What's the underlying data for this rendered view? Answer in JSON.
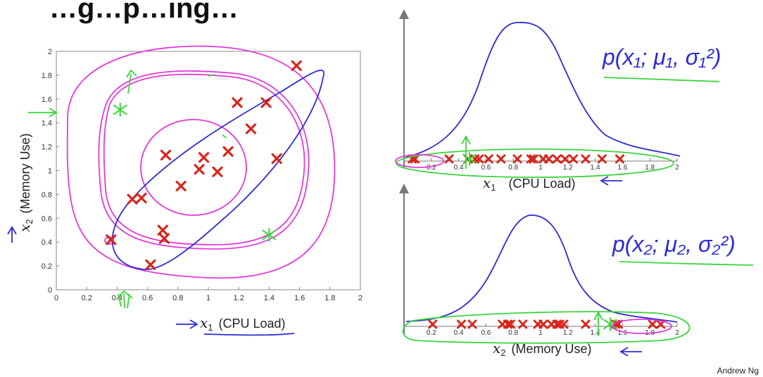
{
  "slide": {
    "title": "…g…p…ing…",
    "credit": "Andrew Ng"
  },
  "colors": {
    "data_points": "#d8261b",
    "gaussian_curve": "#2b2bd6",
    "handwriting_magenta": "#e23ad9",
    "handwriting_green": "#3ad63a",
    "handwriting_blue": "#2b2bd6",
    "axis": "#777777"
  },
  "scatter": {
    "xlabel_var": "x",
    "xlabel_sub": "1",
    "xlabel_text": "(CPU Load)",
    "ylabel_var": "x",
    "ylabel_sub": "2",
    "ylabel_text": "(Memory Use)"
  },
  "hist1": {
    "label_var": "x",
    "label_sub": "1",
    "label_text": "(CPU Load)",
    "formula": "p(x₁; μ₁, σ₁²)"
  },
  "hist2": {
    "label_var": "x",
    "label_sub": "2",
    "label_text": "(Memory Use)",
    "formula": "p(x₂; μ₂, σ₂²)"
  },
  "chart_data": [
    {
      "type": "scatter",
      "xlabel": "x1 (CPU Load)",
      "ylabel": "x2 (Memory Use)",
      "xlim": [
        0,
        2
      ],
      "ylim": [
        0,
        2
      ],
      "xticks": [
        "0",
        "0.2",
        "0.4",
        "0.6",
        "0.8",
        "1",
        "1.2",
        "1.4",
        "1.6",
        "1.8",
        "2"
      ],
      "yticks": [
        "0",
        "0.2",
        "0.4",
        "0.6",
        "0.8",
        "1",
        "1.2",
        "1.4",
        "1.6",
        "1.8",
        "2"
      ],
      "points": [
        {
          "x": 0.36,
          "y": 0.42
        },
        {
          "x": 0.5,
          "y": 0.76
        },
        {
          "x": 0.56,
          "y": 0.77
        },
        {
          "x": 0.62,
          "y": 0.21
        },
        {
          "x": 0.7,
          "y": 0.5
        },
        {
          "x": 0.71,
          "y": 0.43
        },
        {
          "x": 0.72,
          "y": 1.13
        },
        {
          "x": 0.82,
          "y": 0.87
        },
        {
          "x": 0.94,
          "y": 1.01
        },
        {
          "x": 0.97,
          "y": 1.11
        },
        {
          "x": 1.06,
          "y": 0.99
        },
        {
          "x": 1.13,
          "y": 1.16
        },
        {
          "x": 1.19,
          "y": 1.57
        },
        {
          "x": 1.28,
          "y": 1.35
        },
        {
          "x": 1.38,
          "y": 1.57
        },
        {
          "x": 1.45,
          "y": 1.1
        },
        {
          "x": 1.58,
          "y": 1.88
        }
      ],
      "anomalies": [
        {
          "x": 0.42,
          "y": 1.51
        },
        {
          "x": 1.4,
          "y": 0.46
        }
      ]
    },
    {
      "type": "scatter",
      "xlabel": "x1 (CPU Load)",
      "xlim": [
        0,
        2
      ],
      "xticks": [
        "0.2",
        "0.4",
        "0.6",
        "0.8",
        "1",
        "1.2",
        "1.4",
        "1.6",
        "1.8",
        "2"
      ],
      "points_x": [
        0.06,
        0.08,
        0.33,
        0.47,
        0.52,
        0.55,
        0.62,
        0.71,
        0.83,
        0.93,
        0.95,
        1.02,
        1.06,
        1.12,
        1.18,
        1.24,
        1.33,
        1.45,
        1.58
      ],
      "anomaly_x": 0.48
    },
    {
      "type": "scatter",
      "xlabel": "x2 (Memory Use)",
      "xlim": [
        0,
        2
      ],
      "xticks": [
        "0.2",
        "0.4",
        "0.6",
        "0.8",
        "1",
        "1.2",
        "1.4",
        "1.6",
        "1.8",
        "2"
      ],
      "points_x": [
        0.21,
        0.42,
        0.5,
        0.72,
        0.76,
        0.78,
        0.87,
        0.98,
        1.02,
        1.08,
        1.12,
        1.14,
        1.17,
        1.33,
        1.55,
        1.57,
        1.82,
        1.88
      ],
      "anomaly_x": 1.51
    }
  ]
}
